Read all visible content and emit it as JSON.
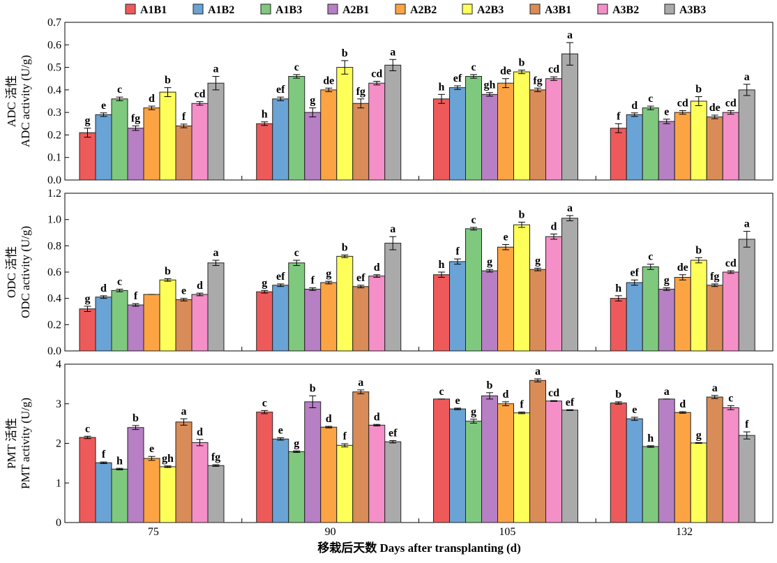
{
  "x_axis_title": "移栽后天数 Days after transplanting (d)",
  "legend": [
    "A1B1",
    "A1B2",
    "A1B3",
    "A2B1",
    "A2B2",
    "A2B3",
    "A3B1",
    "A3B2",
    "A3B3"
  ],
  "colors": [
    "#ee5a5a",
    "#6aa3d6",
    "#7fc97f",
    "#b77fc4",
    "#fca444",
    "#ffff5a",
    "#d98c57",
    "#f48fc8",
    "#aaaaaa"
  ],
  "chart_data": [
    {
      "type": "bar",
      "ylabel_cn": "ADC 活性",
      "ylabel_en": "ADC activity (U/g)",
      "categories": [
        "75",
        "90",
        "105",
        "132"
      ],
      "ylim": [
        0,
        0.7
      ],
      "yticks": [
        0.0,
        0.1,
        0.2,
        0.3,
        0.4,
        0.5,
        0.6,
        0.7
      ],
      "tick_decimals": 1,
      "show_x_labels": false,
      "series": [
        {
          "name": "A1B1",
          "values": [
            0.21,
            0.25,
            0.36,
            0.23
          ],
          "errors": [
            0.02,
            0.008,
            0.02,
            0.02
          ],
          "letters": [
            "g",
            "h",
            "h",
            "f"
          ]
        },
        {
          "name": "A1B2",
          "values": [
            0.29,
            0.36,
            0.41,
            0.29
          ],
          "errors": [
            0.008,
            0.008,
            0.008,
            0.008
          ],
          "letters": [
            "e",
            "ef",
            "ef",
            "d"
          ]
        },
        {
          "name": "A1B3",
          "values": [
            0.36,
            0.46,
            0.46,
            0.32
          ],
          "errors": [
            0.008,
            0.008,
            0.008,
            0.008
          ],
          "letters": [
            "c",
            "c",
            "c",
            "c"
          ]
        },
        {
          "name": "A2B1",
          "values": [
            0.23,
            0.3,
            0.38,
            0.26
          ],
          "errors": [
            0.01,
            0.02,
            0.008,
            0.01
          ],
          "letters": [
            "fg",
            "g",
            "gh",
            "e"
          ]
        },
        {
          "name": "A2B2",
          "values": [
            0.32,
            0.4,
            0.43,
            0.3
          ],
          "errors": [
            0.008,
            0.008,
            0.02,
            0.008
          ],
          "letters": [
            "d",
            "de",
            "de",
            "cd"
          ]
        },
        {
          "name": "A2B3",
          "values": [
            0.39,
            0.5,
            0.48,
            0.35
          ],
          "errors": [
            0.02,
            0.03,
            0.008,
            0.02
          ],
          "letters": [
            "b",
            "b",
            "b",
            "b"
          ]
        },
        {
          "name": "A3B1",
          "values": [
            0.24,
            0.34,
            0.4,
            0.28
          ],
          "errors": [
            0.008,
            0.02,
            0.008,
            0.008
          ],
          "letters": [
            "f",
            "fg",
            "fg",
            "de"
          ]
        },
        {
          "name": "A3B2",
          "values": [
            0.34,
            0.43,
            0.45,
            0.3
          ],
          "errors": [
            0.008,
            0.008,
            0.008,
            0.008
          ],
          "letters": [
            "cd",
            "cd",
            "cd",
            "cd"
          ]
        },
        {
          "name": "A3B3",
          "values": [
            0.43,
            0.51,
            0.56,
            0.4
          ],
          "errors": [
            0.03,
            0.025,
            0.05,
            0.025
          ],
          "letters": [
            "a",
            "a",
            "a",
            "a"
          ]
        }
      ]
    },
    {
      "type": "bar",
      "ylabel_cn": "ODC 活性",
      "ylabel_en": "ODC activity (U/g)",
      "categories": [
        "75",
        "90",
        "105",
        "132"
      ],
      "ylim": [
        0,
        1.2
      ],
      "yticks": [
        0.0,
        0.2,
        0.4,
        0.6,
        0.8,
        1.0,
        1.2
      ],
      "tick_decimals": 1,
      "show_x_labels": false,
      "series": [
        {
          "name": "A1B1",
          "values": [
            0.32,
            0.45,
            0.58,
            0.4
          ],
          "errors": [
            0.02,
            0.01,
            0.02,
            0.02
          ],
          "letters": [
            "g",
            "g",
            "h",
            "h"
          ]
        },
        {
          "name": "A1B2",
          "values": [
            0.41,
            0.5,
            0.68,
            0.52
          ],
          "errors": [
            0.01,
            0.01,
            0.02,
            0.02
          ],
          "letters": [
            "d",
            "ef",
            "f",
            "ef"
          ]
        },
        {
          "name": "A1B3",
          "values": [
            0.46,
            0.67,
            0.93,
            0.64
          ],
          "errors": [
            0.01,
            0.02,
            0.01,
            0.02
          ],
          "letters": [
            "c",
            "c",
            "c",
            "c"
          ]
        },
        {
          "name": "A2B1",
          "values": [
            0.35,
            0.47,
            0.61,
            0.47
          ],
          "errors": [
            0.01,
            0.01,
            0.01,
            0.01
          ],
          "letters": [
            "f",
            "f",
            "g",
            "g"
          ]
        },
        {
          "name": "A2B2",
          "values": [
            0.43,
            0.52,
            0.79,
            0.56
          ],
          "errors": [
            0.0,
            0.01,
            0.02,
            0.02
          ],
          "letters": [
            "",
            "g",
            "e",
            "de"
          ]
        },
        {
          "name": "A2B3",
          "values": [
            0.54,
            0.72,
            0.96,
            0.69
          ],
          "errors": [
            0.01,
            0.01,
            0.02,
            0.02
          ],
          "letters": [
            "b",
            "b",
            "b",
            "b"
          ]
        },
        {
          "name": "A3B1",
          "values": [
            0.39,
            0.49,
            0.62,
            0.5
          ],
          "errors": [
            0.01,
            0.01,
            0.01,
            0.01
          ],
          "letters": [
            "e",
            "ef",
            "g",
            "fg"
          ]
        },
        {
          "name": "A3B2",
          "values": [
            0.43,
            0.57,
            0.87,
            0.6
          ],
          "errors": [
            0.01,
            0.01,
            0.02,
            0.01
          ],
          "letters": [
            "d",
            "d",
            "d",
            "cd"
          ]
        },
        {
          "name": "A3B3",
          "values": [
            0.67,
            0.82,
            1.01,
            0.85
          ],
          "errors": [
            0.02,
            0.05,
            0.02,
            0.06
          ],
          "letters": [
            "a",
            "a",
            "a",
            "a"
          ]
        }
      ]
    },
    {
      "type": "bar",
      "ylabel_cn": "PMT 活性",
      "ylabel_en": "PMT activity (U/g)",
      "categories": [
        "75",
        "90",
        "105",
        "132"
      ],
      "ylim": [
        0,
        4
      ],
      "yticks": [
        0,
        1,
        2,
        3,
        4
      ],
      "tick_decimals": 0,
      "show_x_labels": true,
      "series": [
        {
          "name": "A1B1",
          "values": [
            2.15,
            2.79,
            3.12,
            3.02
          ],
          "errors": [
            0.03,
            0.04,
            0.0,
            0.03
          ],
          "letters": [
            "c",
            "c",
            "c",
            "b"
          ]
        },
        {
          "name": "A1B2",
          "values": [
            1.51,
            2.11,
            2.87,
            2.62
          ],
          "errors": [
            0.02,
            0.03,
            0.02,
            0.04
          ],
          "letters": [
            "f",
            "e",
            "e",
            "e"
          ]
        },
        {
          "name": "A1B3",
          "values": [
            1.35,
            1.79,
            2.56,
            1.92
          ],
          "errors": [
            0.02,
            0.02,
            0.05,
            0.02
          ],
          "letters": [
            "h",
            "g",
            "g",
            "h"
          ]
        },
        {
          "name": "A2B1",
          "values": [
            2.4,
            3.05,
            3.2,
            3.12
          ],
          "errors": [
            0.05,
            0.15,
            0.08,
            0.0
          ],
          "letters": [
            "b",
            "b",
            "b",
            "a"
          ]
        },
        {
          "name": "A2B2",
          "values": [
            1.62,
            2.41,
            3.0,
            2.78
          ],
          "errors": [
            0.05,
            0.02,
            0.05,
            0.02
          ],
          "letters": [
            "e",
            "d",
            "d",
            "d"
          ]
        },
        {
          "name": "A2B3",
          "values": [
            1.41,
            1.95,
            2.77,
            2.01
          ],
          "errors": [
            0.02,
            0.04,
            0.02,
            0.01
          ],
          "letters": [
            "gh",
            "f",
            "f",
            "g"
          ]
        },
        {
          "name": "A3B1",
          "values": [
            2.54,
            3.3,
            3.59,
            3.17
          ],
          "errors": [
            0.08,
            0.05,
            0.04,
            0.04
          ],
          "letters": [
            "a",
            "a",
            "a",
            "a"
          ]
        },
        {
          "name": "A3B2",
          "values": [
            2.02,
            2.46,
            3.07,
            2.9
          ],
          "errors": [
            0.08,
            0.02,
            0.01,
            0.05
          ],
          "letters": [
            "d",
            "d",
            "cd",
            "c"
          ]
        },
        {
          "name": "A3B3",
          "values": [
            1.44,
            2.04,
            2.84,
            2.2
          ],
          "errors": [
            0.02,
            0.03,
            0.01,
            0.09
          ],
          "letters": [
            "fg",
            "ef",
            "ef",
            "f"
          ]
        }
      ]
    }
  ]
}
